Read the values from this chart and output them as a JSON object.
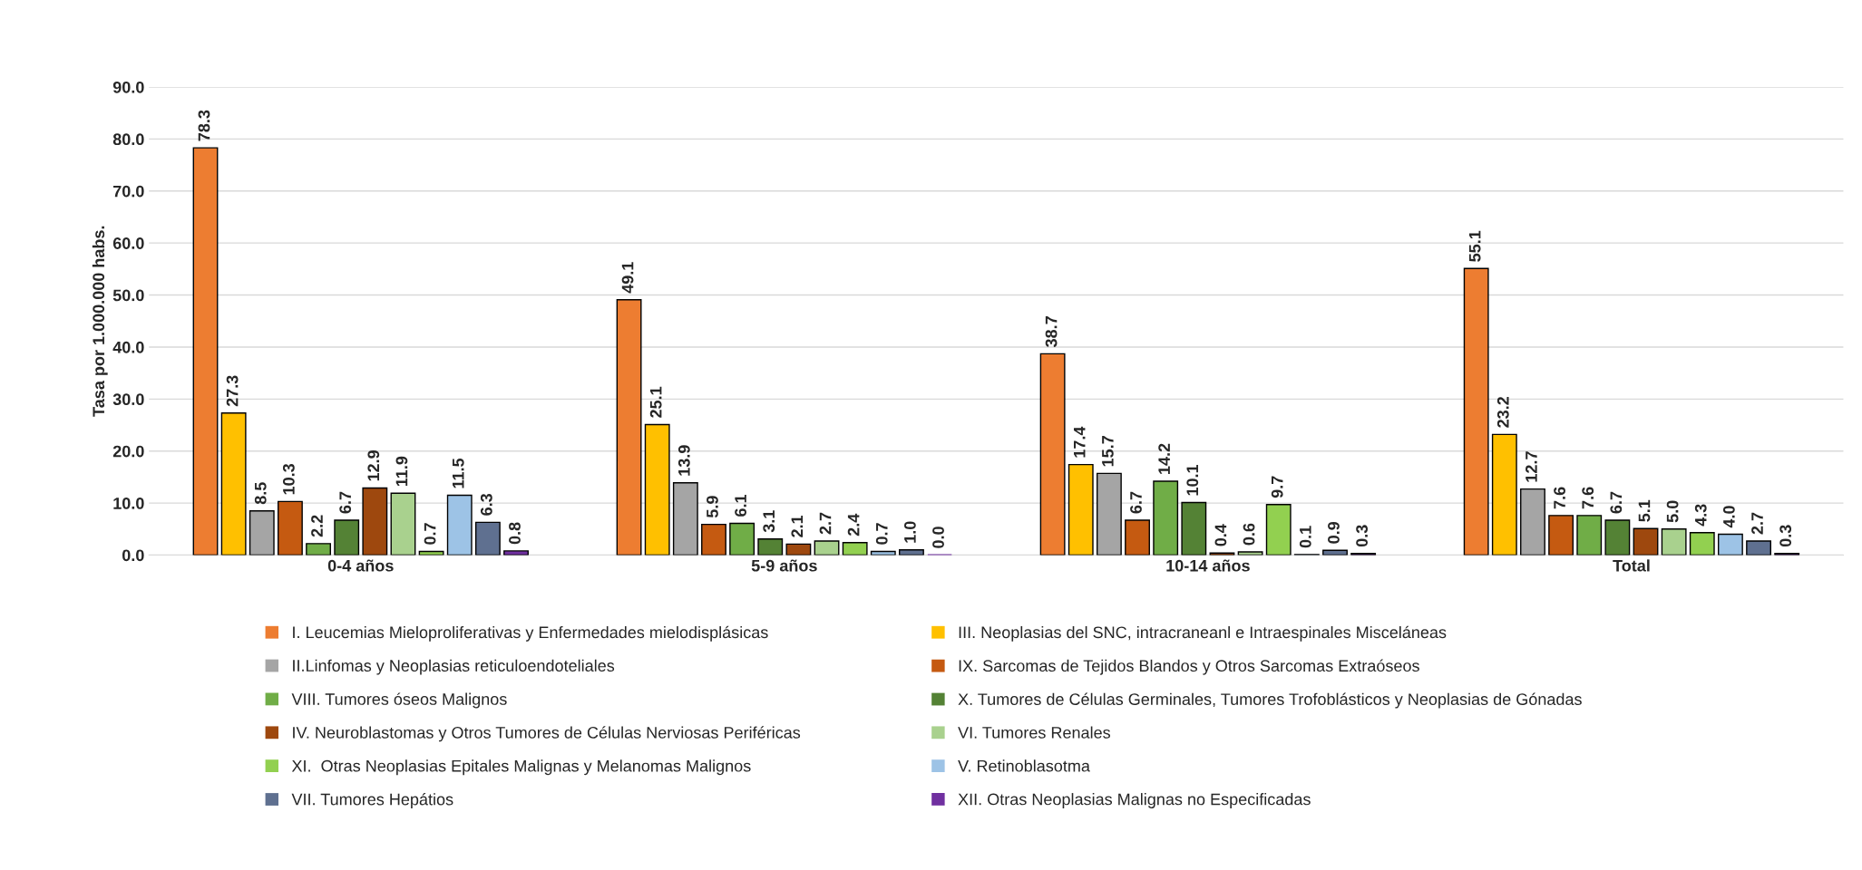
{
  "chart_data": {
    "type": "bar",
    "ylabel": "Tasa por 1.000.000 habs.",
    "categories": [
      "0-4 años",
      "5-9 años",
      "10-14 años",
      "Total"
    ],
    "ylim": [
      0,
      90
    ],
    "yticks": [
      {
        "value": 0,
        "label": "0.0"
      },
      {
        "value": 10,
        "label": "10.0"
      },
      {
        "value": 20,
        "label": "20.0"
      },
      {
        "value": 30,
        "label": "30.0"
      },
      {
        "value": 40,
        "label": "40.0"
      },
      {
        "value": 50,
        "label": "50.0"
      },
      {
        "value": 60,
        "label": "60.0"
      },
      {
        "value": 70,
        "label": "70.0"
      },
      {
        "value": 80,
        "label": "80.0"
      },
      {
        "value": 90,
        "label": "90.0"
      }
    ],
    "grid": "y",
    "legend": "bottom",
    "series": [
      {
        "name": "I. Leucemias Mieloproliferativas y Enfermedades mielodisplásicas",
        "color": "#ed7d31",
        "values": [
          78.3,
          49.1,
          38.7,
          55.1
        ],
        "value_labels": [
          "78.3",
          "49.1",
          "38.7",
          "55.1"
        ]
      },
      {
        "name": "III. Neoplasias del SNC, intracraneanl e Intraespinales Misceláneas",
        "color": "#ffc000",
        "values": [
          27.3,
          25.1,
          17.4,
          23.2
        ],
        "value_labels": [
          "27.3",
          "25.1",
          "17.4",
          "23.2"
        ]
      },
      {
        "name": "II.Linfomas y Neoplasias reticuloendoteliales",
        "color": "#a5a5a5",
        "values": [
          8.5,
          13.9,
          15.7,
          12.7
        ],
        "value_labels": [
          "8.5",
          "13.9",
          "15.7",
          "12.7"
        ]
      },
      {
        "name": "IX. Sarcomas de Tejidos Blandos y Otros Sarcomas Extraóseos",
        "color": "#c55a11",
        "values": [
          10.3,
          5.9,
          6.7,
          7.6
        ],
        "value_labels": [
          "10.3",
          "5.9",
          "6.7",
          "7.6"
        ]
      },
      {
        "name": "VIII. Tumores óseos Malignos",
        "color": "#70ad47",
        "values": [
          2.2,
          6.1,
          14.2,
          7.6
        ],
        "value_labels": [
          "2.2",
          "6.1",
          "14.2",
          "7.6"
        ]
      },
      {
        "name": "X. Tumores de Células Germinales, Tumores Trofoblásticos y Neoplasias de Gónadas",
        "color": "#548235",
        "values": [
          6.7,
          3.1,
          10.1,
          6.7
        ],
        "value_labels": [
          "6.7",
          "3.1",
          "10.1",
          "6.7"
        ]
      },
      {
        "name": "IV. Neuroblastomas y Otros Tumores de Células Nerviosas Periféricas",
        "color": "#9e480e",
        "values": [
          12.9,
          2.1,
          0.4,
          5.1
        ],
        "value_labels": [
          "12.9",
          "2.1",
          "0.4",
          "5.1"
        ]
      },
      {
        "name": "VI. Tumores Renales",
        "color": "#a9d18e",
        "values": [
          11.9,
          2.7,
          0.6,
          5.0
        ],
        "value_labels": [
          "11.9",
          "2.7",
          "0.6",
          "5.0"
        ]
      },
      {
        "name": "XI.  Otras Neoplasias Epitales Malignas y Melanomas Malignos",
        "color": "#92d050",
        "values": [
          0.7,
          2.4,
          9.7,
          4.3
        ],
        "value_labels": [
          "0.7",
          "2.4",
          "9.7",
          "4.3"
        ]
      },
      {
        "name": "V. Retinoblasotma",
        "color": "#9dc3e6",
        "values": [
          11.5,
          0.7,
          0.1,
          4.0
        ],
        "value_labels": [
          "11.5",
          "0.7",
          "0.1",
          "4.0"
        ]
      },
      {
        "name": "VII. Tumores Hepátios",
        "color": "#5f7090",
        "values": [
          6.3,
          1.0,
          0.9,
          2.7
        ],
        "value_labels": [
          "6.3",
          "1.0",
          "0.9",
          "2.7"
        ]
      },
      {
        "name": "XII. Otras Neoplasias Malignas no Especificadas",
        "color": "#7030a0",
        "values": [
          0.8,
          0.0,
          0.3,
          0.3
        ],
        "value_labels": [
          "0.8",
          "0.0",
          "0.3",
          "0.3"
        ]
      }
    ]
  }
}
